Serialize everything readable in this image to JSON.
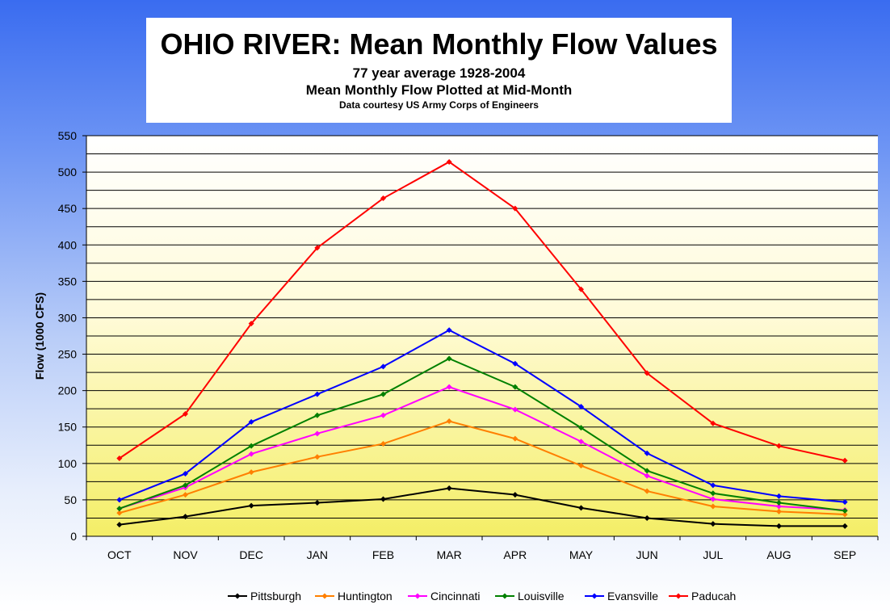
{
  "chart_data": {
    "type": "line",
    "title": "OHIO RIVER: Mean Monthly Flow Values",
    "subtitle": "77 year average 1928-2004",
    "subtitle2": "Mean Monthly Flow Plotted at Mid-Month",
    "credit": "Data courtesy US Army Corps of Engineers",
    "xlabel": "",
    "ylabel": "Flow (1000 CFS)",
    "ylim": [
      0,
      550
    ],
    "yticks": [
      0,
      50,
      100,
      150,
      200,
      250,
      300,
      350,
      400,
      450,
      500,
      550
    ],
    "categories": [
      "OCT",
      "NOV",
      "DEC",
      "JAN",
      "FEB",
      "MAR",
      "APR",
      "MAY",
      "JUN",
      "JUL",
      "AUG",
      "SEP"
    ],
    "grid": true,
    "legend_position": "bottom",
    "series": [
      {
        "name": "Pittsburgh",
        "color": "#000000",
        "values": [
          16,
          27,
          42,
          46,
          51,
          66,
          57,
          39,
          25,
          17,
          14,
          14
        ]
      },
      {
        "name": "Huntington",
        "color": "#ff7f00",
        "values": [
          32,
          57,
          88,
          109,
          127,
          158,
          134,
          97,
          62,
          41,
          34,
          30
        ]
      },
      {
        "name": "Cincinnati",
        "color": "#ff00ff",
        "values": [
          38,
          67,
          113,
          141,
          166,
          205,
          174,
          130,
          83,
          51,
          41,
          36
        ]
      },
      {
        "name": "Louisville",
        "color": "#008000",
        "values": [
          38,
          70,
          124,
          166,
          195,
          244,
          205,
          149,
          90,
          59,
          46,
          35
        ]
      },
      {
        "name": "Evansville",
        "color": "#0000ff",
        "values": [
          50,
          86,
          157,
          195,
          233,
          283,
          237,
          178,
          114,
          70,
          55,
          47
        ]
      },
      {
        "name": "Paducah",
        "color": "#ff0000",
        "values": [
          107,
          168,
          292,
          396,
          464,
          514,
          450,
          339,
          224,
          155,
          124,
          104
        ]
      }
    ]
  }
}
